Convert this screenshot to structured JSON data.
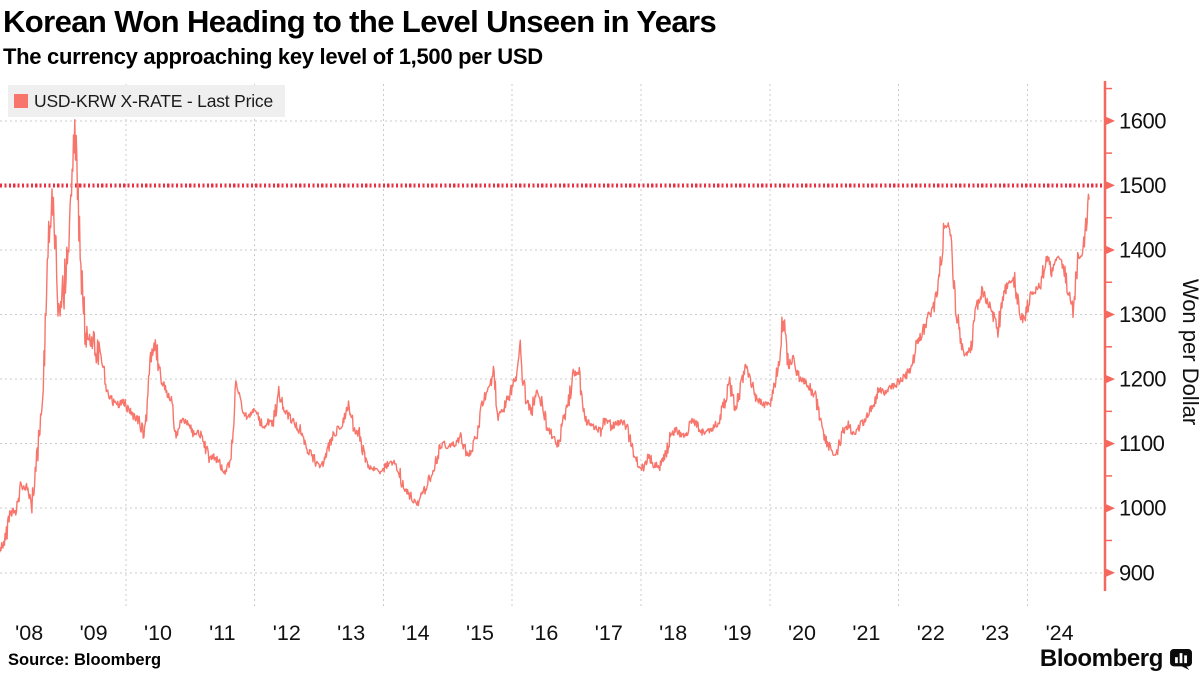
{
  "title": "Korean Won Heading to the Level Unseen in Years",
  "subtitle": "The currency approaching key level of 1,500 per USD",
  "legend": {
    "label": "USD-KRW X-RATE - Last Price",
    "swatch_color": "#F8756B"
  },
  "source_note": "Source: Bloomberg",
  "branding": {
    "logo_text": "Bloomberg",
    "logo_icon": "bar-chart-icon"
  },
  "colors": {
    "line": "#F8756B",
    "axis": "#F4685E",
    "reference": "#E73040",
    "grid": "#cbcbcb",
    "text": "#111111"
  },
  "chart_data": {
    "type": "line",
    "title": "Korean Won Heading to the Level Unseen in Years",
    "subtitle": "The currency approaching key level of 1,500 per USD",
    "xlabel": "",
    "ylabel": "Won per Dollar",
    "ylim": [
      880,
      1660
    ],
    "y_ticks": [
      900,
      1000,
      1100,
      1200,
      1300,
      1400,
      1500,
      1600
    ],
    "x_tick_labels": [
      "'08",
      "'09",
      "'10",
      "'11",
      "'12",
      "'13",
      "'14",
      "'15",
      "'16",
      "'17",
      "'18",
      "'19",
      "'20",
      "'21",
      "'22",
      "'23",
      "'24"
    ],
    "grid": {
      "horizontal": true,
      "vertical_years": [
        2010,
        2012,
        2014,
        2016,
        2018,
        2020,
        2022,
        2024
      ]
    },
    "legend_position": "top-left",
    "reference_line": {
      "value": 1500,
      "style": "dotted",
      "color": "#E73040"
    },
    "series": [
      {
        "name": "USD-KRW X-RATE - Last Price",
        "color": "#F8756B",
        "x_start_year": 2008,
        "x_interval": "monthly",
        "x_end_year": 2024,
        "values": [
          938,
          950,
          990,
          1000,
          1035,
          1030,
          1012,
          1080,
          1160,
          1420,
          1485,
          1290,
          1345,
          1440,
          1595,
          1400,
          1270,
          1262,
          1248,
          1235,
          1180,
          1165,
          1160,
          1166,
          1152,
          1142,
          1135,
          1110,
          1230,
          1258,
          1200,
          1186,
          1160,
          1115,
          1135,
          1132,
          1115,
          1120,
          1105,
          1075,
          1080,
          1070,
          1055,
          1070,
          1190,
          1160,
          1140,
          1152,
          1150,
          1125,
          1135,
          1130,
          1180,
          1155,
          1140,
          1130,
          1120,
          1095,
          1085,
          1070,
          1064,
          1088,
          1110,
          1122,
          1132,
          1158,
          1125,
          1115,
          1082,
          1062,
          1060,
          1055,
          1066,
          1070,
          1070,
          1040,
          1025,
          1014,
          1008,
          1026,
          1045,
          1065,
          1095,
          1099,
          1095,
          1100,
          1112,
          1082,
          1090,
          1117,
          1160,
          1185,
          1203,
          1142,
          1155,
          1176,
          1200,
          1242,
          1170,
          1146,
          1188,
          1164,
          1125,
          1112,
          1096,
          1135,
          1167,
          1208,
          1208,
          1140,
          1128,
          1124,
          1120,
          1142,
          1126,
          1132,
          1138,
          1124,
          1088,
          1068,
          1062,
          1080,
          1068,
          1064,
          1080,
          1112,
          1120,
          1114,
          1114,
          1136,
          1128,
          1118,
          1120,
          1126,
          1136,
          1162,
          1192,
          1155,
          1182,
          1218,
          1196,
          1172,
          1164,
          1158,
          1168,
          1218,
          1295,
          1222,
          1232,
          1200,
          1196,
          1186,
          1170,
          1132,
          1106,
          1086,
          1084,
          1116,
          1130,
          1114,
          1122,
          1136,
          1150,
          1162,
          1186,
          1176,
          1186,
          1192,
          1200,
          1206,
          1222,
          1256,
          1272,
          1296,
          1312,
          1348,
          1432,
          1442,
          1322,
          1264,
          1232,
          1248,
          1310,
          1336,
          1322,
          1302,
          1276,
          1330,
          1352,
          1358,
          1302,
          1290,
          1330,
          1336,
          1346,
          1396,
          1362,
          1386,
          1386,
          1340,
          1308,
          1386,
          1402,
          1478
        ]
      }
    ]
  }
}
